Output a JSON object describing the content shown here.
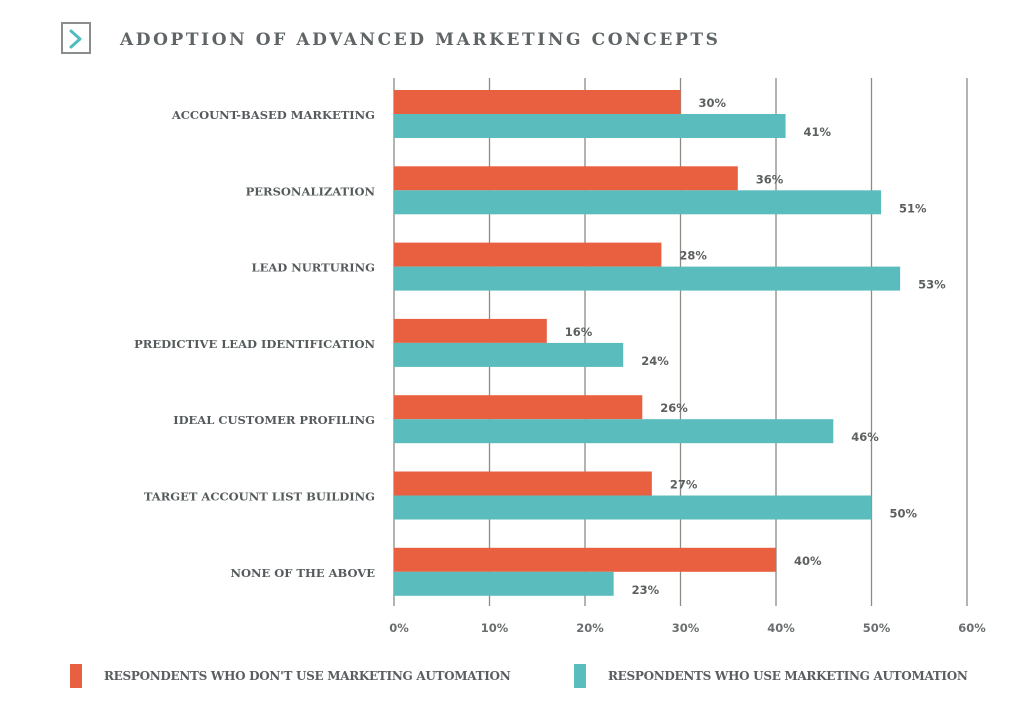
{
  "header": {
    "title": "ADOPTION OF ADVANCED MARKETING CONCEPTS",
    "icon": "chevron-right-icon"
  },
  "colors": {
    "no_automation": "#e8603f",
    "automation": "#5bbcbd",
    "gridline": "#8c8c84",
    "icon_accent": "#4fbcbf"
  },
  "chart_data": {
    "type": "bar",
    "orientation": "horizontal",
    "title": "ADOPTION OF ADVANCED MARKETING CONCEPTS",
    "xlabel": "",
    "ylabel": "",
    "categories": [
      "ACCOUNT-BASED MARKETING",
      "PERSONALIZATION",
      "LEAD NURTURING",
      "PREDICTIVE LEAD IDENTIFICATION",
      "IDEAL CUSTOMER PROFILING",
      "TARGET ACCOUNT LIST BUILDING",
      "NONE OF THE ABOVE"
    ],
    "series": [
      {
        "name": "RESPONDENTS WHO DON'T USE MARKETING AUTOMATION",
        "color": "#e8603f",
        "values": [
          30,
          36,
          28,
          16,
          26,
          27,
          40
        ]
      },
      {
        "name": "RESPONDENTS WHO USE MARKETING AUTOMATION",
        "color": "#5bbcbd",
        "values": [
          41,
          51,
          53,
          24,
          46,
          50,
          23
        ]
      }
    ],
    "xlim": [
      0,
      60
    ],
    "xticks": [
      0,
      10,
      20,
      30,
      40,
      50,
      60
    ],
    "xtick_labels": [
      "0%",
      "10%",
      "20%",
      "30%",
      "40%",
      "50%",
      "60%"
    ],
    "value_suffix": "%",
    "grid": true,
    "legend_position": "bottom"
  }
}
